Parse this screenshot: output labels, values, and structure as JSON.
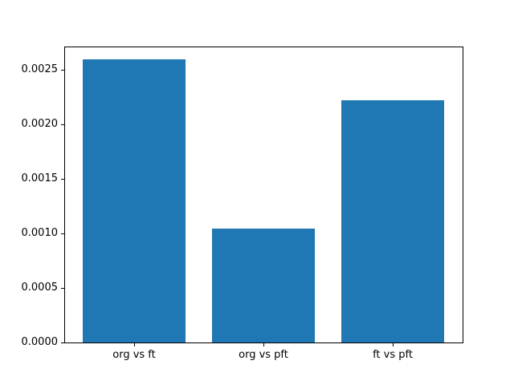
{
  "figure": {
    "background": "#ffffff"
  },
  "chart_data": {
    "type": "bar",
    "title": "",
    "xlabel": "",
    "ylabel": "",
    "categories": [
      "org vs ft",
      "org vs pft",
      "ft vs pft"
    ],
    "values": [
      0.00259,
      0.00104,
      0.00222
    ],
    "bar_color": "#1f77b4",
    "bar_width_fraction": 0.8,
    "x_margin_fraction": 0.05,
    "ylim": [
      0,
      0.00271
    ],
    "yticks": [
      {
        "value": 0.0,
        "label": "0.0000"
      },
      {
        "value": 0.0005,
        "label": "0.0005"
      },
      {
        "value": 0.001,
        "label": "0.0010"
      },
      {
        "value": 0.0015,
        "label": "0.0015"
      },
      {
        "value": 0.002,
        "label": "0.0020"
      },
      {
        "value": 0.0025,
        "label": "0.0025"
      }
    ],
    "grid": false,
    "legend": null,
    "spine_color": "#000000",
    "tick_color": "#000000"
  }
}
